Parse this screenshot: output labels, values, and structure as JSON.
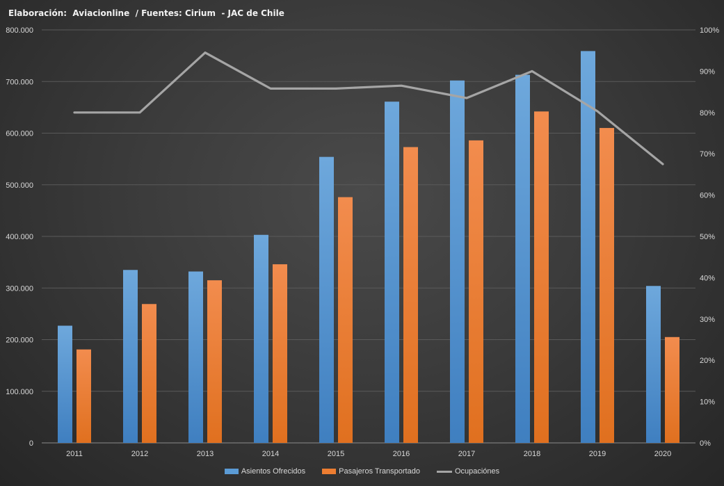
{
  "source_note": "Elaboración:  Aviacionline  / Fuentes: Cirium  - JAC de Chile",
  "chart_data": {
    "type": "bar",
    "categories": [
      "2011",
      "2012",
      "2013",
      "2014",
      "2015",
      "2016",
      "2017",
      "2018",
      "2019",
      "2020"
    ],
    "series": [
      {
        "name": "Asientos Ofrecidos",
        "type": "bar",
        "axis": "left",
        "color": "#5b9bd5",
        "values": [
          227000,
          335000,
          332000,
          403000,
          554000,
          661000,
          702000,
          713000,
          759000,
          304000
        ]
      },
      {
        "name": "Pasajeros Transportado",
        "type": "bar",
        "axis": "left",
        "color": "#ed7d31",
        "values": [
          181000,
          269000,
          315000,
          346000,
          476000,
          573000,
          586000,
          642000,
          610000,
          205000
        ]
      },
      {
        "name": "Ocupaciónes",
        "type": "line",
        "axis": "right",
        "color": "#a5a5a5",
        "values": [
          80,
          80,
          94.5,
          85.8,
          85.8,
          86.5,
          83.5,
          90,
          80.3,
          67.5
        ]
      }
    ],
    "ylim": [
      0,
      800000
    ],
    "y_ticks": [
      "0",
      "100.000",
      "200.000",
      "300.000",
      "400.000",
      "500.000",
      "600.000",
      "700.000",
      "800.000"
    ],
    "y2lim": [
      0,
      100
    ],
    "y2_ticks": [
      "0%",
      "10%",
      "20%",
      "30%",
      "40%",
      "50%",
      "60%",
      "70%",
      "80%",
      "90%",
      "100%"
    ],
    "grid": true,
    "legend_position": "bottom"
  }
}
